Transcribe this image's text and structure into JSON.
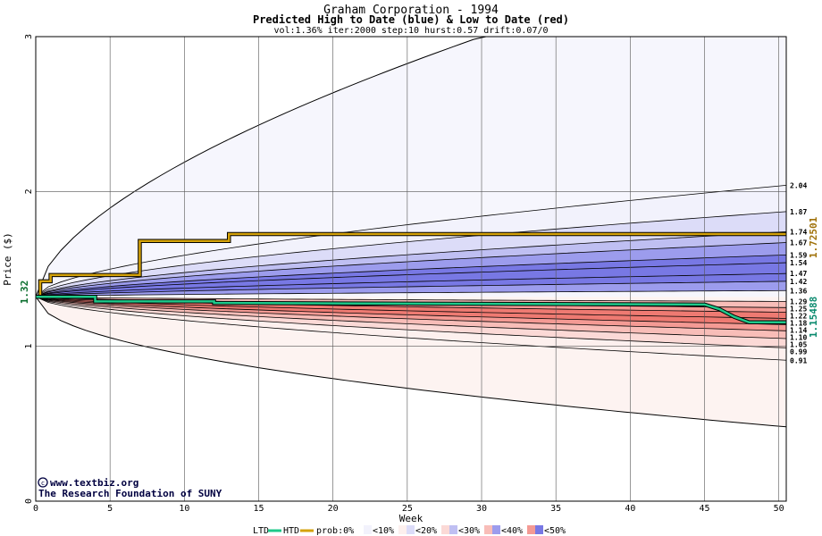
{
  "chart_data": {
    "type": "area",
    "title": "Graham Corporation - 1994",
    "subtitle": "Predicted High to Date (blue) &  Low to Date (red)",
    "params": "vol:1.36% iter:2000 step:10 hurst:0.57 drift:0.07/0",
    "xlabel": "Week",
    "ylabel": "Price ($)",
    "xlim": [
      0,
      50.5
    ],
    "ylim": [
      0,
      3
    ],
    "x_ticks": [
      0,
      5,
      10,
      15,
      20,
      25,
      30,
      35,
      40,
      45,
      50
    ],
    "y_ticks": [
      0,
      1,
      2,
      3
    ],
    "start_price": 1.32,
    "start_label": "1.32",
    "high_to_date_label": "1.72501",
    "low_to_date_label": "1.15488",
    "right_labels": [
      "2.04",
      "1.87",
      "1.74",
      "1.67",
      "1.59",
      "1.54",
      "1.47",
      "1.42",
      "1.36",
      "1.29",
      "1.25",
      "1.22",
      "1.18",
      "1.14",
      "1.10",
      "1.05",
      "0.99",
      "0.91"
    ],
    "bands": [
      {
        "side": "high",
        "level": "<10%",
        "color": "#f2f2fc",
        "lo": 1.36,
        "hi": 2.04
      },
      {
        "side": "high",
        "level": "<20%",
        "color": "#dcdcf8",
        "lo": 1.36,
        "hi": 1.87
      },
      {
        "side": "high",
        "level": "<30%",
        "color": "#bfbff2",
        "lo": 1.36,
        "hi": 1.74
      },
      {
        "side": "high",
        "level": "<40%",
        "color": "#9c9ced",
        "lo": 1.36,
        "hi": 1.67
      },
      {
        "side": "high",
        "level": "<50%",
        "color": "#7878e4",
        "lo": 1.42,
        "hi": 1.59
      },
      {
        "side": "low",
        "level": "<10%",
        "color": "#fdf0ee",
        "lo": 0.91,
        "hi": 1.29
      },
      {
        "side": "low",
        "level": "<20%",
        "color": "#fbd9d6",
        "lo": 0.99,
        "hi": 1.29
      },
      {
        "side": "low",
        "level": "<30%",
        "color": "#f8bdb8",
        "lo": 1.05,
        "hi": 1.29
      },
      {
        "side": "low",
        "level": "<40%",
        "color": "#f49a94",
        "lo": 1.1,
        "hi": 1.25
      },
      {
        "side": "low",
        "level": "<50%",
        "color": "#ee7a72",
        "lo": 1.14,
        "hi": 1.22
      }
    ],
    "envelope": {
      "upper_at_30": 3.0,
      "lower_at_50": 0.48
    },
    "series": [
      {
        "name": "HTD",
        "color": "#d4a20a",
        "x": [
          0,
          0.3,
          0.3,
          1.0,
          1.0,
          7.0,
          7.0,
          13.0,
          13.0,
          50.5
        ],
        "y": [
          1.32,
          1.32,
          1.42,
          1.42,
          1.46,
          1.46,
          1.68,
          1.68,
          1.725,
          1.725
        ]
      },
      {
        "name": "LTD",
        "color": "#1ec98a",
        "x": [
          0,
          4.0,
          4.0,
          12.0,
          12.0,
          45.0,
          46.0,
          47.0,
          48.0,
          50.5
        ],
        "y": [
          1.32,
          1.32,
          1.29,
          1.29,
          1.28,
          1.27,
          1.24,
          1.19,
          1.155,
          1.155
        ]
      }
    ],
    "grid": true,
    "legend": {
      "position": "bottom",
      "ltd_label": "LTD",
      "htd_label": "HTD",
      "prob_label": "prob:0%",
      "items": [
        "<10%",
        "<20%",
        "<30%",
        "<40%",
        "<50%"
      ],
      "swatches": [
        {
          "color_left": "#ffffff",
          "color_right": "#f2f2fc"
        },
        {
          "color_left": "#fdf0ee",
          "color_right": "#dcdcf8"
        },
        {
          "color_left": "#fbd9d6",
          "color_right": "#bfbff2"
        },
        {
          "color_left": "#f8bdb8",
          "color_right": "#9c9ced"
        },
        {
          "color_left": "#f49a94",
          "color_right": "#7878e4"
        }
      ]
    }
  },
  "credits": {
    "site": "www.textbiz.org",
    "org": "The Research Foundation of SUNY"
  }
}
